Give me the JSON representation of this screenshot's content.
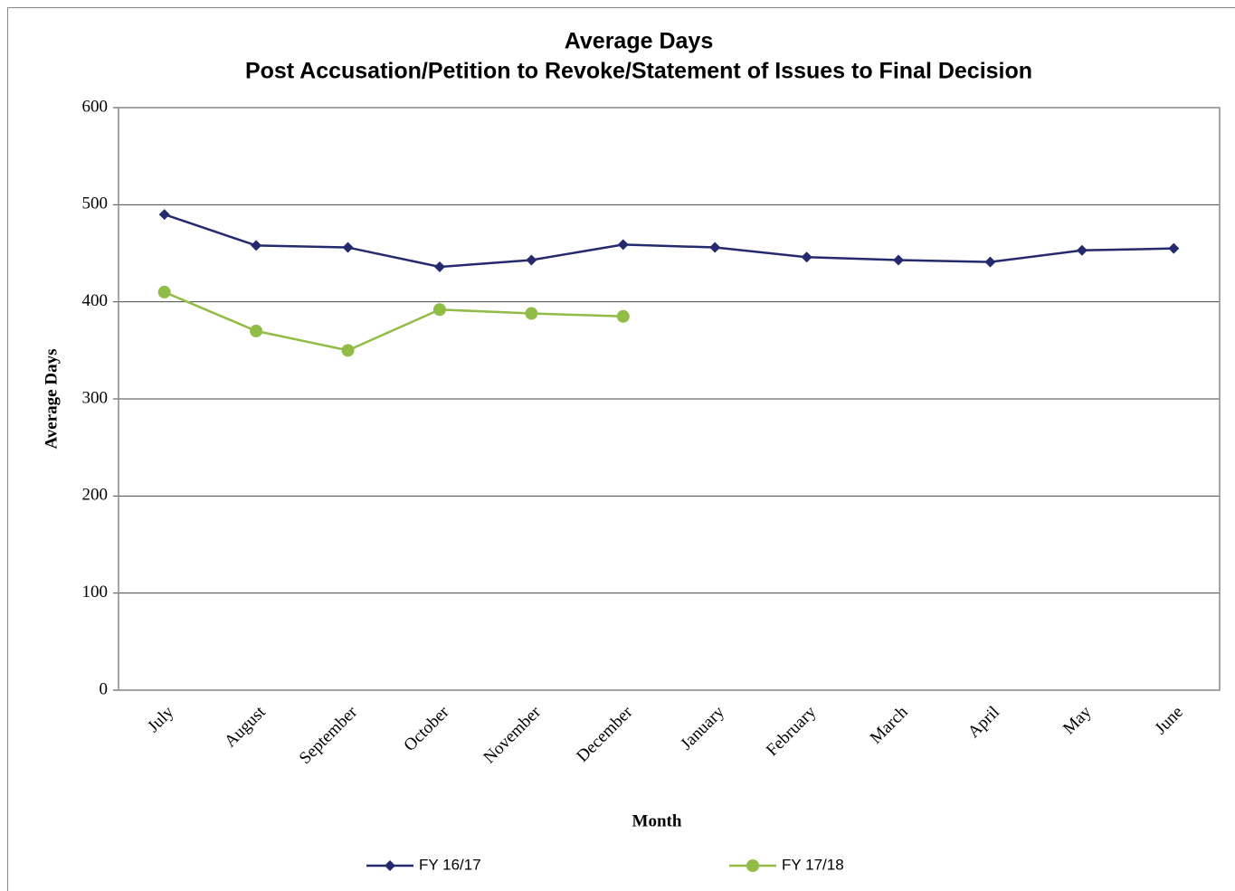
{
  "chart_data": {
    "type": "line",
    "title": "Average Days",
    "subtitle": "Post Accusation/Petition to Revoke/Statement of Issues to Final Decision",
    "x_label": "Month",
    "y_label": "Average Days",
    "categories": [
      "July",
      "August",
      "September",
      "October",
      "November",
      "December",
      "January",
      "February",
      "March",
      "April",
      "May",
      "June"
    ],
    "series": [
      {
        "name": "FY 16/17",
        "color": "#252a6f",
        "marker": "diamond",
        "values": [
          490,
          458,
          456,
          436,
          443,
          459,
          456,
          446,
          443,
          441,
          453,
          455
        ]
      },
      {
        "name": "FY 17/18",
        "color": "#92bc48",
        "marker": "circle",
        "values": [
          410,
          370,
          350,
          392,
          388,
          385,
          null,
          null,
          null,
          null,
          null,
          null
        ]
      }
    ],
    "ylim": [
      0,
      600
    ],
    "yticks": [
      0,
      100,
      200,
      300,
      400,
      500,
      600
    ],
    "grid": true,
    "legend": "bottom"
  }
}
